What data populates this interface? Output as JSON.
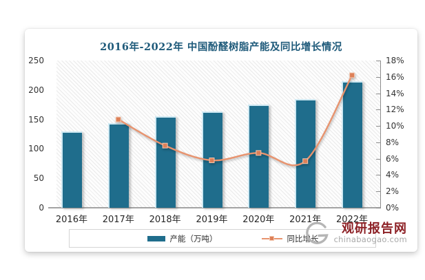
{
  "chart_data": {
    "type": "bar+line",
    "title": "2016年-2022年 中国酚醛树脂产能及同比增长情况",
    "categories": [
      "2016年",
      "2017年",
      "2018年",
      "2019年",
      "2020年",
      "2021年",
      "2022年"
    ],
    "series": [
      {
        "name": "产能（万吨）",
        "type": "bar",
        "axis": "left",
        "color": "#1f6d8c",
        "values": [
          130,
          144,
          155,
          164,
          175,
          185,
          215
        ]
      },
      {
        "name": "同比增长",
        "type": "line",
        "axis": "right",
        "unit": "%",
        "color": "#e8936e",
        "marker_color": "#dd8058",
        "values": [
          null,
          10.8,
          7.6,
          5.8,
          6.7,
          5.7,
          16.2
        ]
      }
    ],
    "left_axis": {
      "min": 0,
      "max": 250,
      "step": 50,
      "tick_labels": [
        "0",
        "50",
        "100",
        "150",
        "200",
        "250"
      ]
    },
    "right_axis": {
      "min": 0,
      "max": 18,
      "step": 2,
      "tick_labels": [
        "0%",
        "2%",
        "4%",
        "6%",
        "8%",
        "10%",
        "12%",
        "14%",
        "16%",
        "18%"
      ]
    },
    "legend_position": "bottom",
    "grid": "none (hatched plot background)"
  },
  "watermark": {
    "site_name": "观研报告网",
    "site_url": "chinabaogao.com",
    "text_color": "#8d2126"
  },
  "colors": {
    "title": "#1e5a7a",
    "bar": "#1f6d8c",
    "line": "#e8936e",
    "axis_text": "#333333"
  }
}
